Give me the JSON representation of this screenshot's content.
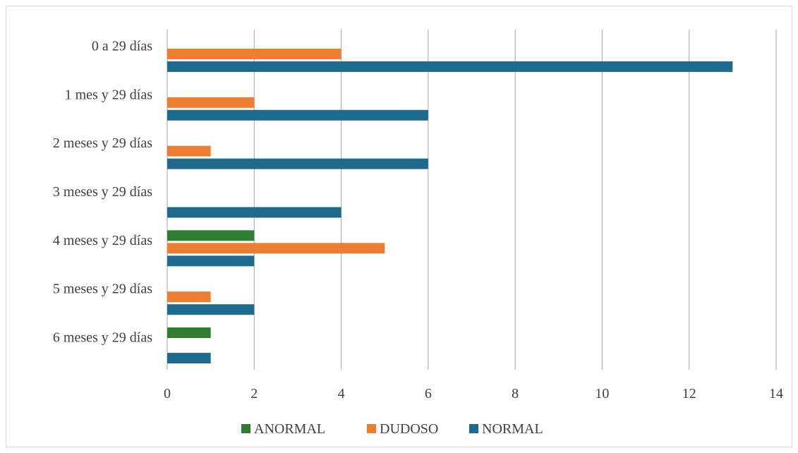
{
  "chart_data": {
    "type": "bar",
    "orientation": "horizontal",
    "categories": [
      "0 a 29 días",
      "1 mes y 29 días",
      "2 meses y 29 días",
      "3 meses y 29 días",
      "4 meses y 29 días",
      "5 meses y 29 días",
      "6 meses y 29 días"
    ],
    "series": [
      {
        "name": "ANORMAL",
        "color": "#2e7d32",
        "values": [
          0,
          0,
          0,
          0,
          2,
          0,
          1
        ]
      },
      {
        "name": "DUDOSO",
        "color": "#ed7d31",
        "values": [
          4,
          2,
          1,
          0,
          5,
          1,
          0
        ]
      },
      {
        "name": "NORMAL",
        "color": "#1f6a8c",
        "values": [
          13,
          6,
          6,
          4,
          2,
          2,
          1
        ]
      }
    ],
    "xlim": [
      0,
      14
    ],
    "xticks": [
      "0",
      "2",
      "4",
      "6",
      "8",
      "10",
      "12",
      "14"
    ],
    "grid": true,
    "legend": "bottom",
    "title": "",
    "xlabel": "",
    "ylabel": ""
  }
}
